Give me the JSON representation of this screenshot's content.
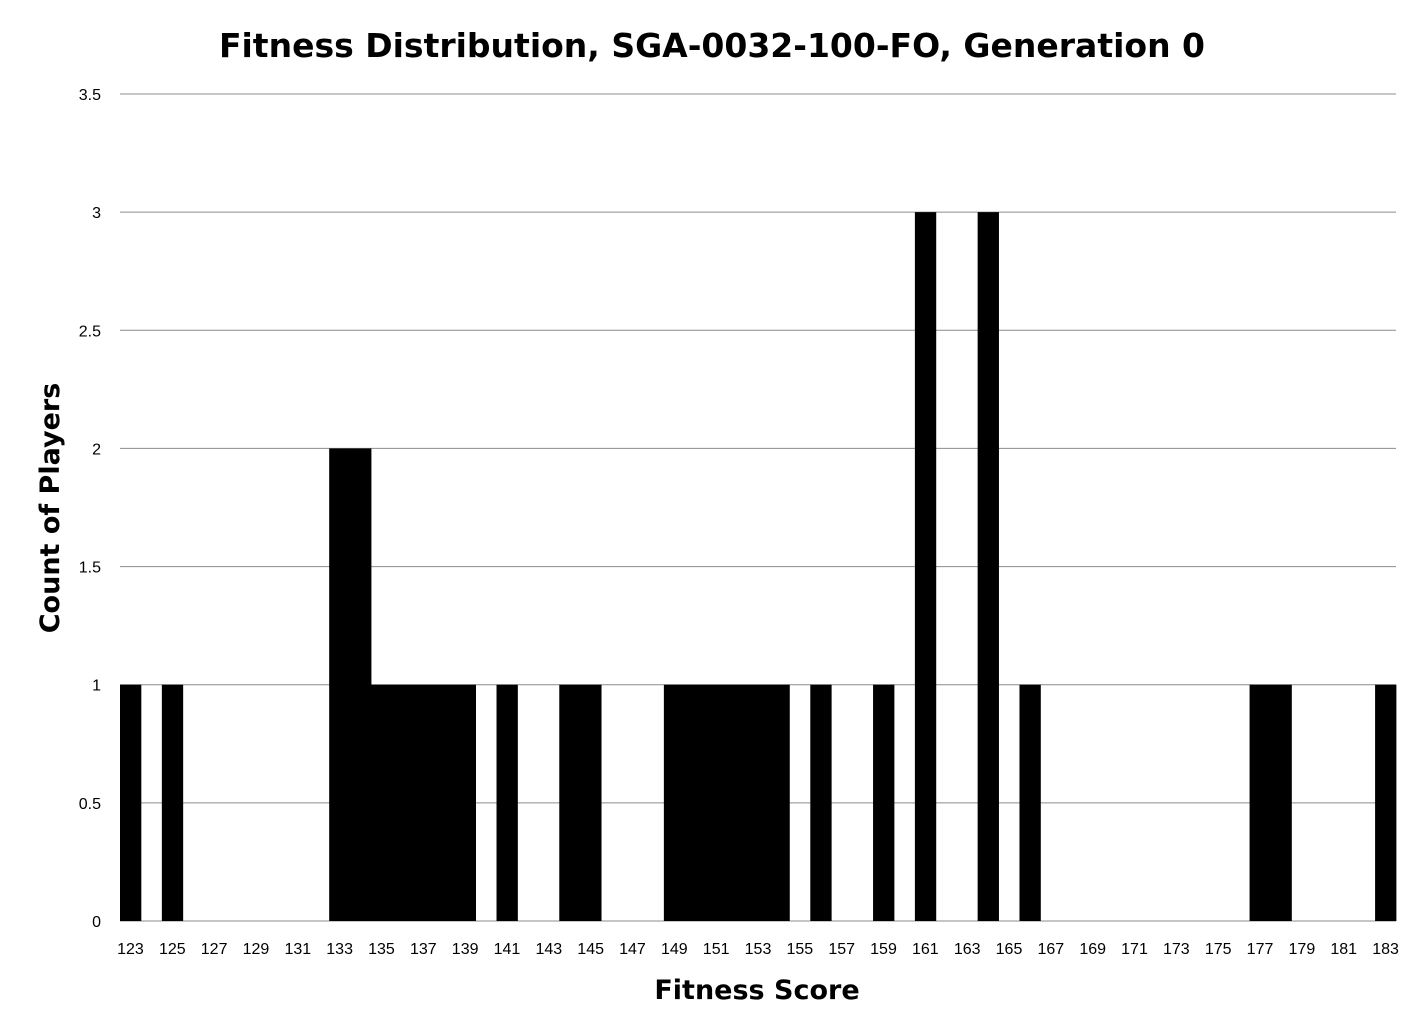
{
  "chart_data": {
    "type": "bar",
    "title": "Fitness Distribution, SGA-0032-100-FO, Generation 0",
    "xlabel": "Fitness Score",
    "ylabel": "Count of Players",
    "ylim": [
      0,
      3.5
    ],
    "yticks": [
      "0",
      "0.5",
      "1",
      "1.5",
      "2",
      "2.5",
      "3",
      "3.5"
    ],
    "grid": true,
    "legend": "none",
    "bar_color": "#000000",
    "categories": [
      123,
      124,
      125,
      126,
      127,
      128,
      129,
      130,
      131,
      132,
      133,
      134,
      135,
      136,
      137,
      138,
      139,
      140,
      141,
      142,
      143,
      144,
      145,
      146,
      147,
      148,
      149,
      150,
      151,
      152,
      153,
      154,
      155,
      156,
      157,
      158,
      159,
      160,
      161,
      162,
      163,
      164,
      165,
      166,
      167,
      168,
      169,
      170,
      171,
      172,
      173,
      174,
      175,
      176,
      177,
      178,
      179,
      180,
      181,
      182,
      183
    ],
    "xtick_labels": [
      "123",
      "125",
      "127",
      "129",
      "131",
      "133",
      "135",
      "137",
      "139",
      "141",
      "143",
      "145",
      "147",
      "149",
      "151",
      "153",
      "155",
      "157",
      "159",
      "161",
      "163",
      "165",
      "167",
      "169",
      "171",
      "173",
      "175",
      "177",
      "179",
      "181",
      "183"
    ],
    "values": [
      1,
      0,
      1,
      0,
      0,
      0,
      0,
      0,
      0,
      0,
      2,
      2,
      1,
      1,
      1,
      1,
      1,
      0,
      1,
      0,
      0,
      1,
      1,
      0,
      0,
      0,
      1,
      1,
      1,
      1,
      1,
      1,
      0,
      1,
      0,
      0,
      1,
      0,
      3,
      0,
      0,
      3,
      0,
      1,
      0,
      0,
      0,
      0,
      0,
      0,
      0,
      0,
      0,
      0,
      1,
      1,
      0,
      0,
      0,
      0,
      1
    ]
  }
}
